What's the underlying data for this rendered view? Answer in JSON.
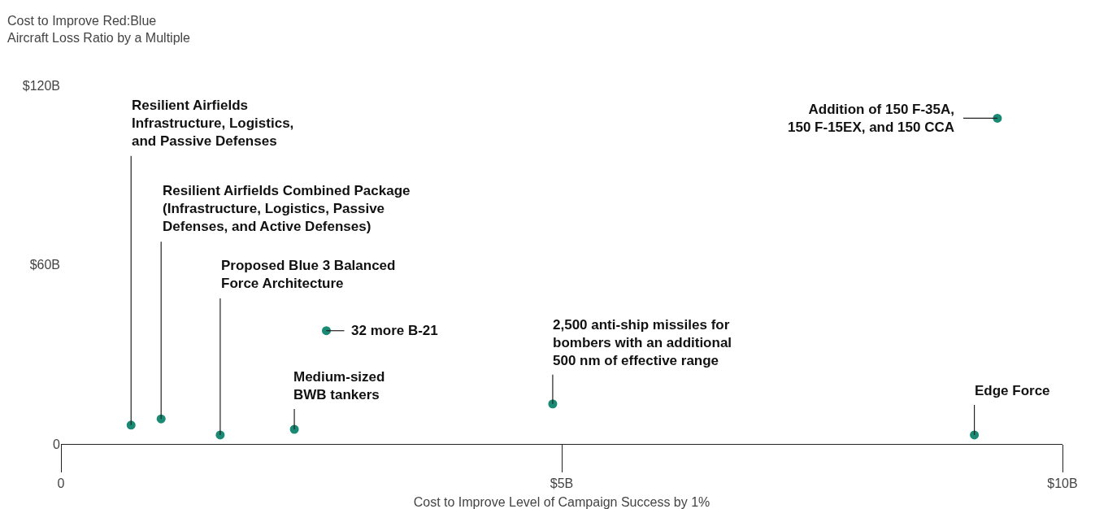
{
  "chart_data": {
    "type": "scatter",
    "ylabel": "Cost to Improve Red:Blue\nAircraft Loss Ratio by a Multiple",
    "xlabel": "Cost to Improve Level of Campaign Success by 1%",
    "x": [
      0.7,
      1.0,
      1.59,
      2.33,
      2.65,
      4.91,
      9.12,
      9.35
    ],
    "values": [
      6.3,
      8.4,
      3.0,
      4.9,
      37.9,
      13.4,
      3.0,
      109
    ],
    "color": "#1a8a74",
    "marker": "circle",
    "xlim": [
      0,
      10
    ],
    "xticks": [
      0,
      {
        "value": 5,
        "label": "$5B"
      },
      {
        "value": 10,
        "label": "$10B"
      }
    ],
    "ylim": [
      0,
      120
    ],
    "yticks": [
      0,
      {
        "value": 60,
        "label": "$60B"
      },
      {
        "value": 120,
        "label": "$120B"
      }
    ],
    "annotations": [
      {
        "text": "Resilient Airfields\nInfrastructure, Logistics,\nand Passive Defenses",
        "x": 0.7,
        "y": 6.3
      },
      {
        "text": "Resilient Airfields Combined Package\n(Infrastructure, Logistics, Passive\nDefenses, and Active Defenses)",
        "x": 1.0,
        "y": 8.4
      },
      {
        "text": "Proposed Blue 3 Balanced\nForce Architecture",
        "x": 1.59,
        "y": 3.0
      },
      {
        "text": "Medium-sized\nBWB tankers",
        "x": 2.33,
        "y": 4.9
      },
      {
        "text": "32 more B-21",
        "x": 2.65,
        "y": 37.9
      },
      {
        "text": "2,500 anti-ship missiles for\nbombers with an additional\n500 nm of effective range",
        "x": 4.91,
        "y": 13.4
      },
      {
        "text": "Edge Force",
        "x": 9.12,
        "y": 3.0
      },
      {
        "text": "Addition of 150 F-35A,\n150 F-15EX, and 150 CCA",
        "x": 9.35,
        "y": 109
      }
    ]
  }
}
